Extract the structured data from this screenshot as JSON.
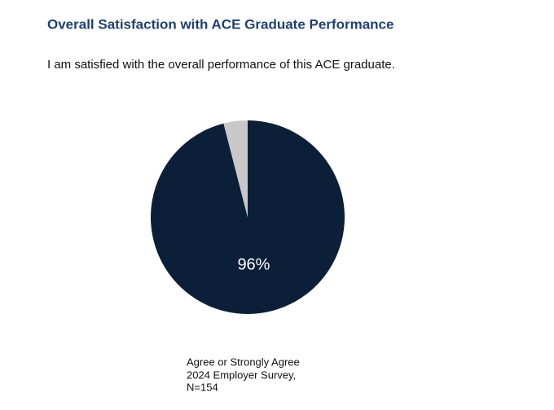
{
  "chart_data": {
    "type": "pie",
    "title": "Overall Satisfaction with ACE Graduate Performance",
    "subtitle": "I am satisfied with the overall performance of this ACE graduate.",
    "categories": [
      "Agree or Strongly Agree",
      null
    ],
    "values": [
      96,
      4
    ],
    "value_labels": [
      "96%",
      null
    ],
    "colors": [
      "#0c1f38",
      "#c8c8c8"
    ],
    "notes": [
      "2024 Employer Survey,",
      "N=154"
    ]
  }
}
